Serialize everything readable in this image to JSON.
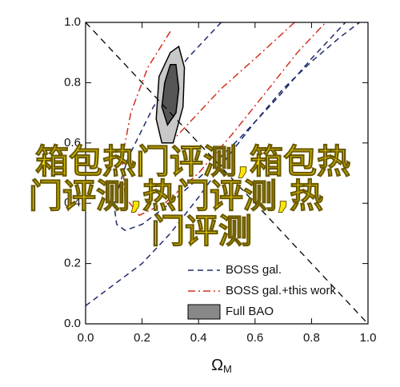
{
  "chart_data": {
    "type": "contour",
    "xlabel": "Ω",
    "xlabel_sub": "M",
    "xlim": [
      0,
      1
    ],
    "ylim": [
      0,
      1
    ],
    "xticks": [
      {
        "value": 0,
        "label": "0.0"
      },
      0.2,
      0.4,
      0.6,
      0.8,
      {
        "value": 1,
        "label": "1.0"
      }
    ],
    "yticks": [
      {
        "value": 0,
        "label": "0.0"
      },
      0.2,
      0.4,
      0.6,
      0.8,
      {
        "value": 1,
        "label": "1.0"
      }
    ],
    "reference_line": {
      "x": [
        0,
        1
      ],
      "y": [
        1,
        0
      ]
    },
    "series": [
      {
        "name": "BOSS gal.",
        "color": "#1f2a6b",
        "style": "dashed",
        "contours": [
          {
            "x": [
              0.0,
              0.1,
              0.2,
              0.3,
              0.4,
              0.5,
              0.6,
              0.7,
              0.8,
              0.9,
              0.97
            ],
            "y": [
              0.06,
              0.13,
              0.2,
              0.3,
              0.42,
              0.55,
              0.67,
              0.78,
              0.87,
              0.95,
              1.0
            ]
          },
          {
            "x": [
              0.48,
              0.36,
              0.24,
              0.15,
              0.1,
              0.11,
              0.14,
              0.2,
              0.3,
              0.42,
              0.55,
              0.68,
              0.8,
              0.92
            ],
            "y": [
              1.0,
              0.88,
              0.72,
              0.55,
              0.4,
              0.33,
              0.31,
              0.33,
              0.4,
              0.5,
              0.62,
              0.75,
              0.88,
              1.0
            ]
          }
        ]
      },
      {
        "name": "BOSS gal.+this work",
        "color": "#d03020",
        "style": "dashdot",
        "contours": [
          {
            "x": [
              0.3,
              0.22,
              0.16,
              0.13,
              0.14,
              0.19,
              0.28,
              0.4,
              0.52,
              0.64,
              0.75,
              0.85
            ],
            "y": [
              0.97,
              0.85,
              0.7,
              0.55,
              0.42,
              0.36,
              0.4,
              0.5,
              0.63,
              0.77,
              0.9,
              1.0
            ]
          },
          {
            "x": [
              0.74,
              0.6,
              0.48,
              0.38,
              0.3
            ],
            "y": [
              1.0,
              0.88,
              0.78,
              0.68,
              0.6
            ]
          }
        ]
      },
      {
        "name": "Full BAO",
        "color": "#888888",
        "style": "filled",
        "contours": [
          {
            "x": [
              0.33,
              0.35,
              0.345,
              0.31,
              0.27,
              0.25,
              0.26,
              0.3,
              0.33
            ],
            "y": [
              0.92,
              0.85,
              0.72,
              0.6,
              0.6,
              0.68,
              0.82,
              0.9,
              0.92
            ]
          },
          {
            "x": [
              0.32,
              0.33,
              0.32,
              0.29,
              0.27,
              0.28,
              0.3,
              0.32
            ],
            "y": [
              0.86,
              0.78,
              0.7,
              0.66,
              0.72,
              0.8,
              0.86,
              0.86
            ]
          }
        ]
      }
    ],
    "overlay_text": [
      "箱包热门评测,箱包热",
      "门评测,热门评测,热",
      "门评测"
    ]
  }
}
